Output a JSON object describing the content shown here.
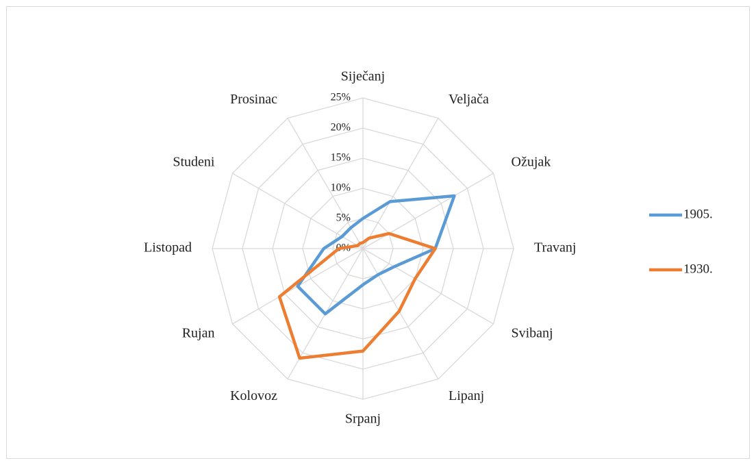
{
  "chart_data": {
    "type": "radar",
    "categories": [
      "Siječanj",
      "Veljača",
      "Ožujak",
      "Travanj",
      "Svibanj",
      "Lipanj",
      "Srpanj",
      "Kolovoz",
      "Rujan",
      "Listopad",
      "Studeni",
      "Prosinac"
    ],
    "series": [
      {
        "name": "1905.",
        "color": "#5b9bd5",
        "values": [
          5,
          9,
          17.5,
          12,
          6,
          5,
          6,
          12.5,
          12.5,
          6.5,
          4,
          4
        ]
      },
      {
        "name": "1930.",
        "color": "#ed7d31",
        "values": [
          1,
          2,
          5,
          12,
          10,
          12,
          17,
          21,
          16,
          4,
          1,
          1
        ]
      }
    ],
    "ylim": [
      0,
      25
    ],
    "yticks": [
      {
        "value": 0,
        "label": "0%"
      },
      {
        "value": 5,
        "label": "5%"
      },
      {
        "value": 10,
        "label": "10%"
      },
      {
        "value": 15,
        "label": "15%"
      },
      {
        "value": 20,
        "label": "20%"
      },
      {
        "value": 25,
        "label": "25%"
      }
    ],
    "grid": true,
    "legend": "right"
  }
}
